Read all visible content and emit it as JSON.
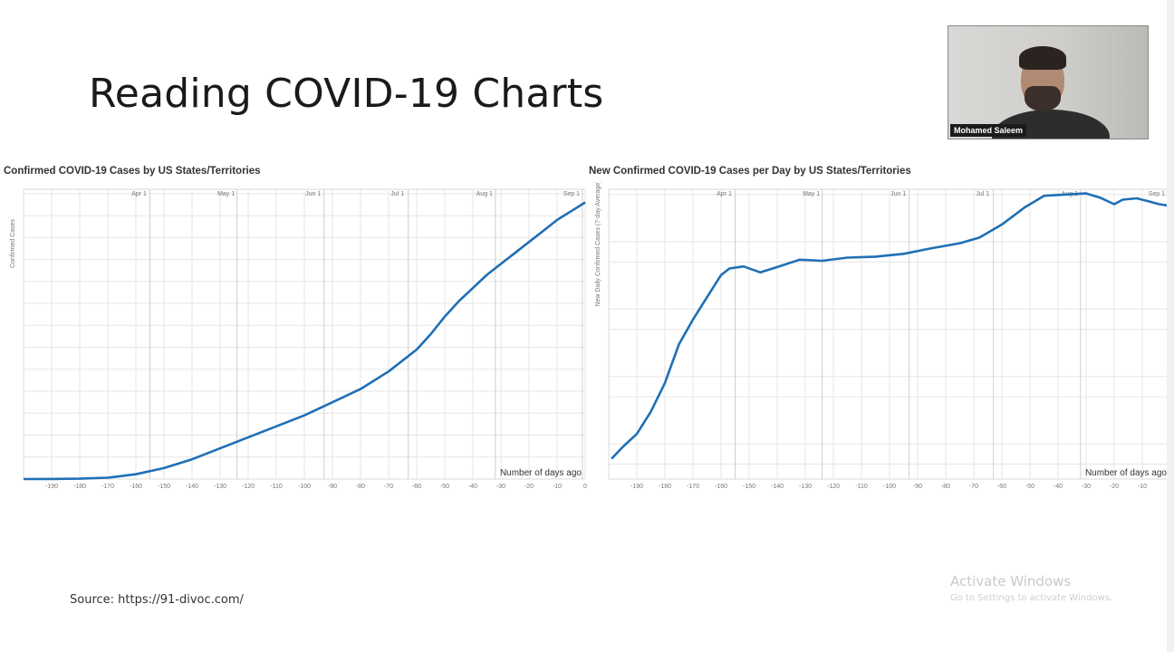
{
  "slide": {
    "title": "Reading COVID-19 Charts",
    "source": "Source: https://91-divoc.com/"
  },
  "webcam": {
    "name": "Mohamed Saleem"
  },
  "watermark": {
    "title": "Activate Windows",
    "subtitle": "Go to Settings to activate Windows."
  },
  "colors": {
    "line": "#1f6fb5",
    "grid": "#e6e6e6",
    "month_line": "#cfcfcf"
  },
  "chart_data": [
    {
      "type": "line",
      "title": "Confirmed COVID-19 Cases by US States/Territories",
      "xlabel": "Number of days ago",
      "ylabel": "Confirmed Cases",
      "scale": "linear",
      "month_labels": [
        "Apr 1",
        "May 1",
        "Jun 1",
        "Jul 1",
        "Aug 1",
        "Sep 1"
      ],
      "x": [
        -200,
        -190,
        -180,
        -170,
        -160,
        -150,
        -140,
        -130,
        -120,
        -110,
        -100,
        -90,
        -80,
        -70,
        -60,
        -55,
        -50,
        -45,
        -40,
        -35,
        -30,
        -25,
        -20,
        -15,
        -10,
        -5,
        0
      ],
      "y": [
        0,
        2000,
        8000,
        30000,
        110000,
        250000,
        450000,
        700000,
        950000,
        1200000,
        1450000,
        1750000,
        2050000,
        2450000,
        2950000,
        3300000,
        3700000,
        4050000,
        4350000,
        4650000,
        4900000,
        5150000,
        5400000,
        5650000,
        5900000,
        6100000,
        6300000
      ],
      "grid": true
    },
    {
      "type": "line",
      "title": "New Confirmed COVID-19 Cases per Day by US States/Territories",
      "xlabel": "Number of days ago",
      "ylabel": "New Daily Confirmed Cases (7-day Average)",
      "scale": "log",
      "month_labels": [
        "Apr 1",
        "May 1",
        "Jun 1",
        "Jul 1",
        "Aug 1",
        "Sep 1"
      ],
      "x": [
        -199,
        -195,
        -190,
        -185,
        -180,
        -175,
        -170,
        -165,
        -160,
        -157,
        -152,
        -146,
        -140,
        -132,
        -124,
        -115,
        -105,
        -95,
        -85,
        -75,
        -68,
        -60,
        -52,
        -45,
        -38,
        -30,
        -25,
        -20,
        -17,
        -12,
        -8,
        -4,
        0
      ],
      "y": [
        6,
        9,
        14,
        30,
        80,
        300,
        700,
        1500,
        3200,
        4000,
        4300,
        3500,
        4200,
        5400,
        5200,
        5800,
        6000,
        6600,
        8000,
        9500,
        11500,
        18000,
        32000,
        48000,
        50000,
        52000,
        45000,
        36000,
        42000,
        44000,
        40000,
        36000,
        34000
      ],
      "grid": true
    }
  ]
}
